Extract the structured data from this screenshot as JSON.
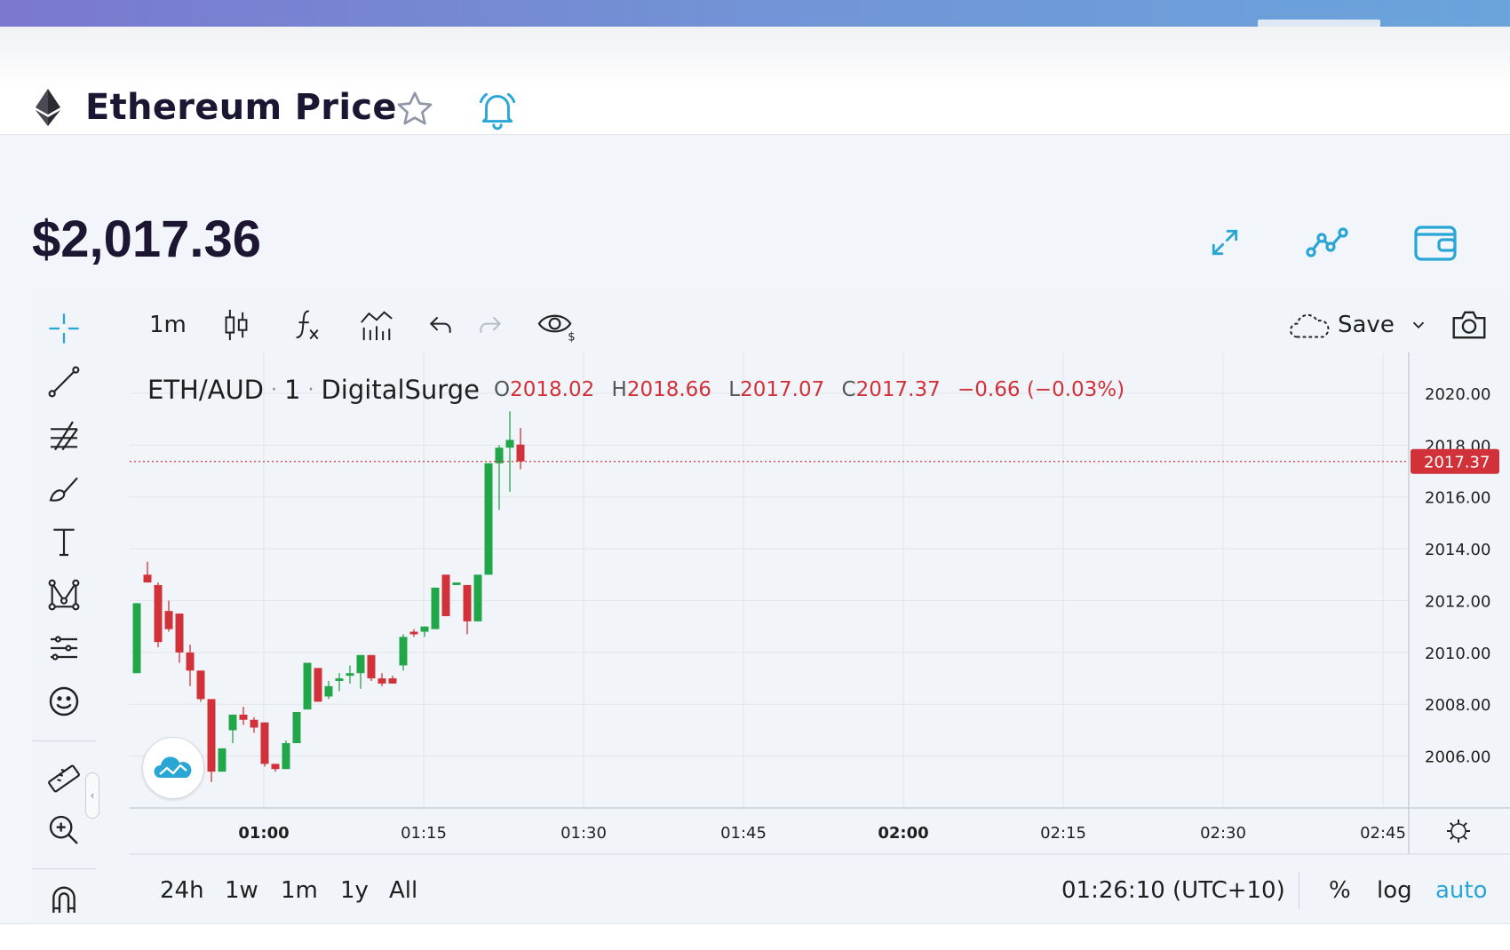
{
  "header": {
    "title": "Ethereum Price",
    "icons": [
      "ethereum-icon",
      "star-icon",
      "bell-icon"
    ]
  },
  "price": "$2,017.36",
  "top_actions": [
    "expand-icon",
    "line-chart-icon",
    "wallet-icon"
  ],
  "toolbar": {
    "interval": "1m",
    "save_label": "Save",
    "icons": [
      "candles-icon",
      "indicators-icon",
      "compare-icon",
      "undo-icon",
      "redo-icon",
      "visibility-icon",
      "cloud-icon",
      "chevron-down-icon",
      "camera-icon"
    ]
  },
  "legend": {
    "symbol": "ETH/AUD",
    "interval": "1",
    "exchange": "DigitalSurge",
    "o_label": "O",
    "o_value": "2018.02",
    "h_label": "H",
    "h_value": "2018.66",
    "l_label": "L",
    "l_value": "2017.07",
    "c_label": "C",
    "c_value": "2017.37",
    "change": "−0.66 (−0.03%)"
  },
  "last_price_label": "2017.37",
  "bottom": {
    "ranges": [
      "24h",
      "1w",
      "1m",
      "1y",
      "All"
    ],
    "time": "01:26:10 (UTC+10)",
    "percent": "%",
    "log": "log",
    "auto": "auto"
  },
  "colors": {
    "up": "#22a64a",
    "down": "#d1323a",
    "accent": "#2aa6d6",
    "text_dark": "#1c1633"
  },
  "chart_data": {
    "type": "candlestick",
    "symbol": "ETH/AUD",
    "ylim": [
      2004.0,
      2021.3
    ],
    "y_ticks": [
      2006,
      2008,
      2010,
      2012,
      2014,
      2016,
      2018,
      2020
    ],
    "y_tick_labels": [
      "2006.00",
      "2008.00",
      "2010.00",
      "2012.00",
      "2014.00",
      "2016.00",
      "2018.00",
      "2020.00"
    ],
    "x_ticks": [
      {
        "label": "01:00",
        "bold": true
      },
      {
        "label": "01:15",
        "bold": false
      },
      {
        "label": "01:30",
        "bold": false
      },
      {
        "label": "01:45",
        "bold": false
      },
      {
        "label": "02:00",
        "bold": true
      },
      {
        "label": "02:15",
        "bold": false
      },
      {
        "label": "02:30",
        "bold": false
      },
      {
        "label": "02:45",
        "bold": false
      }
    ],
    "last_price": 2017.37,
    "candles": [
      {
        "o": 2009.2,
        "h": 2011.9,
        "l": 2009.2,
        "c": 2011.9
      },
      {
        "o": 2013.0,
        "h": 2013.5,
        "l": 2012.7,
        "c": 2012.7
      },
      {
        "o": 2012.6,
        "h": 2012.7,
        "l": 2010.2,
        "c": 2010.4
      },
      {
        "o": 2011.6,
        "h": 2012.0,
        "l": 2010.8,
        "c": 2010.9
      },
      {
        "o": 2011.5,
        "h": 2011.5,
        "l": 2009.6,
        "c": 2010.0
      },
      {
        "o": 2010.0,
        "h": 2010.3,
        "l": 2008.7,
        "c": 2009.3
      },
      {
        "o": 2009.3,
        "h": 2009.3,
        "l": 2008.1,
        "c": 2008.2
      },
      {
        "o": 2008.2,
        "h": 2008.2,
        "l": 2005.0,
        "c": 2005.4
      },
      {
        "o": 2005.4,
        "h": 2006.3,
        "l": 2005.4,
        "c": 2006.3
      },
      {
        "o": 2007.0,
        "h": 2007.6,
        "l": 2006.5,
        "c": 2007.6
      },
      {
        "o": 2007.6,
        "h": 2007.9,
        "l": 2007.2,
        "c": 2007.4
      },
      {
        "o": 2007.4,
        "h": 2007.5,
        "l": 2006.9,
        "c": 2007.1
      },
      {
        "o": 2007.3,
        "h": 2007.3,
        "l": 2005.6,
        "c": 2005.7
      },
      {
        "o": 2005.7,
        "h": 2005.7,
        "l": 2005.4,
        "c": 2005.5
      },
      {
        "o": 2005.5,
        "h": 2006.6,
        "l": 2005.5,
        "c": 2006.5
      },
      {
        "o": 2006.5,
        "h": 2007.7,
        "l": 2006.5,
        "c": 2007.7
      },
      {
        "o": 2007.8,
        "h": 2009.6,
        "l": 2007.8,
        "c": 2009.6
      },
      {
        "o": 2009.4,
        "h": 2009.4,
        "l": 2008.1,
        "c": 2008.1
      },
      {
        "o": 2008.3,
        "h": 2008.9,
        "l": 2008.2,
        "c": 2008.7
      },
      {
        "o": 2008.9,
        "h": 2009.2,
        "l": 2008.5,
        "c": 2009.0
      },
      {
        "o": 2009.1,
        "h": 2009.5,
        "l": 2008.8,
        "c": 2009.2
      },
      {
        "o": 2009.2,
        "h": 2009.9,
        "l": 2008.6,
        "c": 2009.9
      },
      {
        "o": 2009.9,
        "h": 2009.9,
        "l": 2008.9,
        "c": 2009.0
      },
      {
        "o": 2009.0,
        "h": 2009.2,
        "l": 2008.7,
        "c": 2008.8
      },
      {
        "o": 2009.0,
        "h": 2009.1,
        "l": 2008.8,
        "c": 2008.8
      },
      {
        "o": 2009.5,
        "h": 2010.7,
        "l": 2009.3,
        "c": 2010.6
      },
      {
        "o": 2010.8,
        "h": 2010.9,
        "l": 2010.6,
        "c": 2010.7
      },
      {
        "o": 2010.8,
        "h": 2011.0,
        "l": 2010.6,
        "c": 2011.0
      },
      {
        "o": 2010.9,
        "h": 2012.5,
        "l": 2010.9,
        "c": 2012.5
      },
      {
        "o": 2013.0,
        "h": 2013.0,
        "l": 2011.4,
        "c": 2011.4
      },
      {
        "o": 2012.6,
        "h": 2012.7,
        "l": 2012.6,
        "c": 2012.7
      },
      {
        "o": 2012.6,
        "h": 2012.6,
        "l": 2010.7,
        "c": 2011.2
      },
      {
        "o": 2011.2,
        "h": 2013.0,
        "l": 2011.2,
        "c": 2013.0
      },
      {
        "o": 2013.0,
        "h": 2017.3,
        "l": 2013.0,
        "c": 2017.3
      },
      {
        "o": 2017.3,
        "h": 2018.0,
        "l": 2015.5,
        "c": 2017.9
      },
      {
        "o": 2017.9,
        "h": 2019.3,
        "l": 2016.2,
        "c": 2018.2
      },
      {
        "o": 2018.02,
        "h": 2018.66,
        "l": 2017.07,
        "c": 2017.37
      }
    ]
  }
}
